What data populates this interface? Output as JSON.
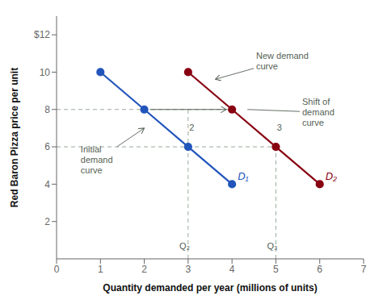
{
  "chart_data": {
    "type": "line",
    "xlabel": "Quantity demanded per year (millions of units)",
    "ylabel": "Red Baron Pizza price per unit",
    "xlim": [
      0,
      7
    ],
    "ylim": [
      0,
      13
    ],
    "xticks": [
      0,
      1,
      2,
      3,
      4,
      5,
      6,
      7
    ],
    "yticks": [
      2,
      4,
      6,
      8,
      10,
      {
        "value": 12,
        "label": "$12"
      }
    ],
    "grid": false,
    "series": [
      {
        "name": "D₁",
        "color": "#2255bb",
        "marker": "circle",
        "line_style": "solid",
        "x": [
          1,
          2,
          3,
          4
        ],
        "values": [
          10,
          8,
          6,
          4
        ]
      },
      {
        "name": "D₂",
        "color": "#880011",
        "marker": "circle",
        "line_style": "solid",
        "x": [
          3,
          4,
          5,
          6
        ],
        "values": [
          10,
          8,
          6,
          4
        ]
      },
      {
        "color": "#99aa99",
        "marker": "none",
        "line_style": "dashed",
        "x": [
          0,
          4
        ],
        "values": [
          8,
          8
        ]
      },
      {
        "color": "#99aa99",
        "marker": "none",
        "line_style": "dashed",
        "x": [
          0,
          5
        ],
        "values": [
          6,
          6
        ]
      },
      {
        "color": "#99aa99",
        "marker": "none",
        "line_style": "dashed",
        "x": [
          3,
          3
        ],
        "values": [
          0,
          8
        ]
      },
      {
        "color": "#99aa99",
        "marker": "none",
        "line_style": "dashed",
        "x": [
          5,
          5
        ],
        "values": [
          0,
          6
        ]
      }
    ],
    "annotations": [
      {
        "text": "2",
        "x": 3.08,
        "y": 7.05,
        "color": "#555f55"
      },
      {
        "text": "3",
        "x": 5.08,
        "y": 7.05,
        "color": "#555f55"
      },
      {
        "text": "Q₂",
        "x": 2.92,
        "y": 0.7,
        "color": "#555f55"
      },
      {
        "text": "Q₃",
        "x": 4.92,
        "y": 0.7,
        "color": "#555f55"
      },
      {
        "text": "New demand\ncurve",
        "x": 4.55,
        "y": 10.6,
        "arrow_to": [
          3.62,
          9.62
        ],
        "color": "#555f55"
      },
      {
        "text": "Shift of\ndemand\ncurve",
        "x": 5.6,
        "y": 7.85,
        "line_to": [
          4.35,
          8.0
        ],
        "color": "#555f55"
      },
      {
        "text": "Initial\ndemand\ncurve",
        "x": 0.55,
        "y": 5.3,
        "arrow_to": [
          2.0,
          7.0
        ],
        "color": "#555f55"
      }
    ],
    "arrows": [
      {
        "from": [
          2,
          8
        ],
        "to": [
          4,
          8
        ],
        "color": "#555f55"
      }
    ]
  }
}
